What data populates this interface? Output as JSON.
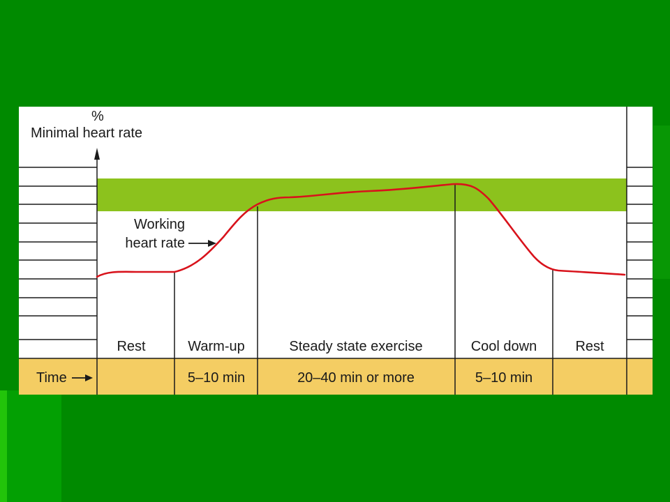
{
  "colors": {
    "slide_background": "#008a00",
    "slide_accent": "#22c40a",
    "diagram_background": "#ffffff",
    "target_zone": "#8cc21d",
    "time_bar": "#f4cd63",
    "curve": "#d8121b",
    "lines": "#1a1a1a"
  },
  "y_axis": {
    "unit": "%",
    "label": "Minimal heart rate"
  },
  "curve_label": {
    "line1": "Working",
    "line2": "heart rate"
  },
  "phases": [
    {
      "name": "Rest",
      "time": ""
    },
    {
      "name": "Warm-up",
      "time": "5–10 min"
    },
    {
      "name": "Steady state exercise",
      "time": "20–40 min or more"
    },
    {
      "name": "Cool down",
      "time": "5–10 min"
    },
    {
      "name": "Rest",
      "time": ""
    }
  ],
  "time_label": "Time",
  "icons": {
    "time_arrow": "right-arrow-icon",
    "label_arrow": "right-arrow-icon",
    "axis_arrow": "up-arrow-icon"
  }
}
